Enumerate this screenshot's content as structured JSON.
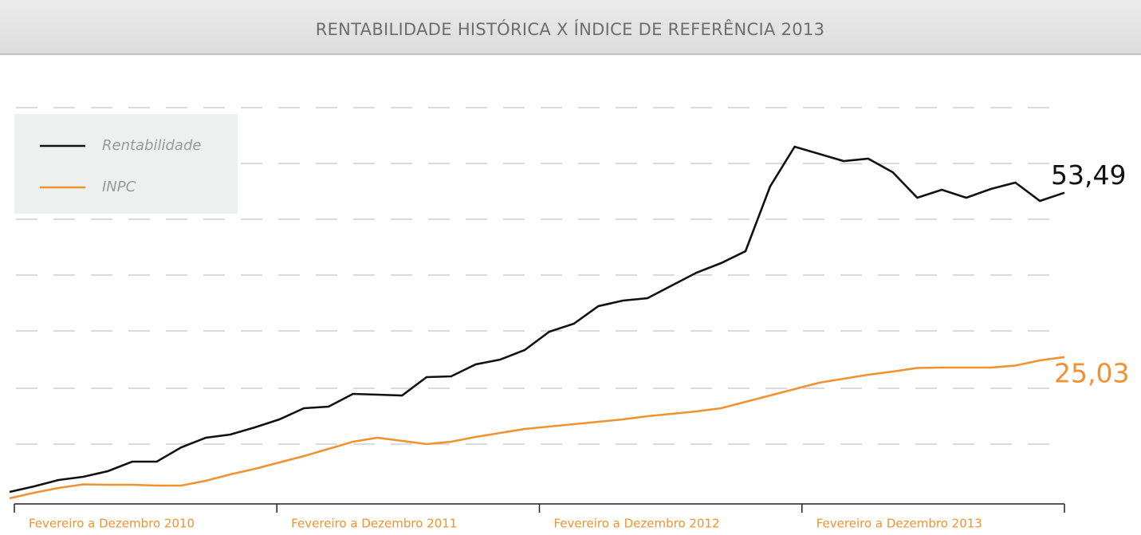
{
  "chart_data": {
    "type": "line",
    "title": "RENTABILIDADE HISTÓRICA X ÍNDICE DE REFERÊNCIA 2013",
    "xgroups": [
      "Fevereiro a Dezembro 2010",
      "Fevereiro a Dezembro 2011",
      "Fevereiro a Dezembro 2012",
      "Fevereiro a Dezembro 2013"
    ],
    "series": [
      {
        "name": "Rentabilidade",
        "color": "#111111",
        "last_label": "53,49",
        "values": [
          1.66,
          2.62,
          3.73,
          4.28,
          5.25,
          6.91,
          6.91,
          9.39,
          11.05,
          11.6,
          12.85,
          14.23,
          16.16,
          16.44,
          18.65,
          18.51,
          18.37,
          21.55,
          21.69,
          23.76,
          24.59,
          26.24,
          29.42,
          30.8,
          33.84,
          34.81,
          35.22,
          37.43,
          39.64,
          41.3,
          43.37,
          54.56,
          61.46,
          60.22,
          58.98,
          59.39,
          57.04,
          52.62,
          54.01,
          52.62,
          54.14,
          55.25,
          52.07,
          53.49
        ]
      },
      {
        "name": "INPC",
        "color": "#f0922f",
        "last_label": "25,03",
        "values": [
          0.55,
          1.52,
          2.35,
          2.97,
          2.9,
          2.9,
          2.76,
          2.76,
          3.59,
          4.7,
          5.66,
          6.77,
          7.87,
          9.12,
          10.36,
          11.05,
          10.5,
          9.94,
          10.36,
          11.19,
          11.88,
          12.57,
          12.98,
          13.4,
          13.81,
          14.23,
          14.78,
          15.19,
          15.61,
          16.16,
          17.27,
          18.37,
          19.48,
          20.58,
          21.27,
          21.96,
          22.51,
          23.14,
          23.2,
          23.2,
          23.2,
          23.55,
          24.45,
          25.03
        ]
      }
    ]
  }
}
